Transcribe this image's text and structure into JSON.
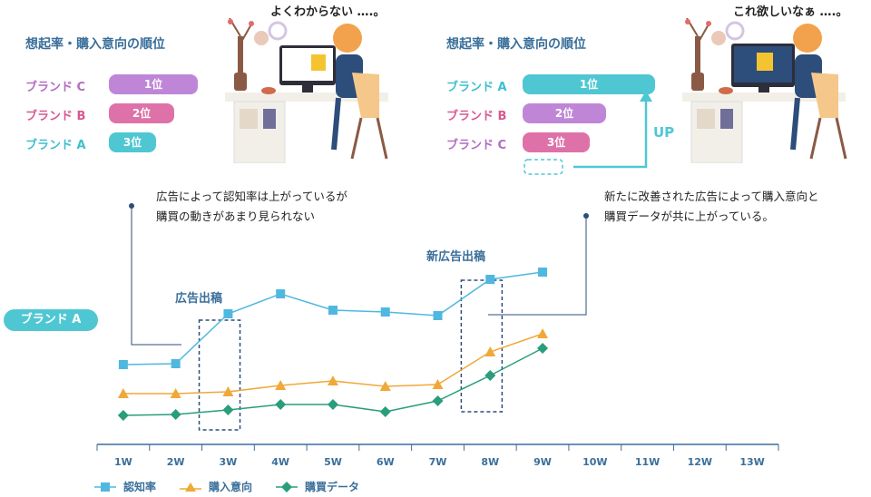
{
  "panel_before": {
    "thought": "よくわからない ….。",
    "ranking_title": "想起率・購入意向の順位",
    "rows": [
      {
        "brand": "ブランド C",
        "rank": "1位",
        "brand_color": "#b46cc4",
        "bar_color": "#bf86d8",
        "value": 1.0
      },
      {
        "brand": "ブランド B",
        "rank": "2位",
        "brand_color": "#d9588f",
        "bar_color": "#de72a8",
        "value": 0.72
      },
      {
        "brand": "ブランド A",
        "rank": "3位",
        "brand_color": "#3fbfcf",
        "bar_color": "#4fc7d2",
        "value": 0.55
      }
    ]
  },
  "panel_after": {
    "thought": "これ欲しいなぁ ….。",
    "ranking_title": "想起率・購入意向の順位",
    "up_label": "UP",
    "rows": [
      {
        "brand": "ブランド A",
        "rank": "1位",
        "brand_color": "#3fbfcf",
        "bar_color": "#4fc7d2",
        "value": 1.0
      },
      {
        "brand": "ブランド B",
        "rank": "2位",
        "brand_color": "#d9588f",
        "bar_color": "#bf86d8",
        "value": 0.63
      },
      {
        "brand": "ブランド C",
        "rank": "3位",
        "brand_color": "#b46cc4",
        "bar_color": "#de72a8",
        "value": 0.51
      }
    ]
  },
  "notes": {
    "left_line1": "広告によって認知率は上がっているが",
    "left_line2": "購買の動きがあまり見られない",
    "right_line1": "新たに改善された広告によって購入意向と",
    "right_line2": "購買データが共に上がっている。"
  },
  "brand_tag": "ブランド A",
  "ad_labels": {
    "first": "広告出稿",
    "second": "新広告出稿"
  },
  "chart_data": {
    "type": "line",
    "x": [
      "1W",
      "2W",
      "3W",
      "4W",
      "5W",
      "6W",
      "7W",
      "8W",
      "9W",
      "10W",
      "11W",
      "12W",
      "13W"
    ],
    "ylim": [
      0,
      10
    ],
    "series": [
      {
        "name": "認知率",
        "color": "#4fb8e0",
        "marker": "square",
        "values": [
          4.3,
          4.35,
          7.1,
          8.2,
          7.3,
          7.2,
          7.0,
          9.0,
          9.4,
          null,
          null,
          null,
          null
        ]
      },
      {
        "name": "購入意向",
        "color": "#f0a838",
        "marker": "triangle",
        "values": [
          2.7,
          2.7,
          2.8,
          3.15,
          3.4,
          3.1,
          3.2,
          5.0,
          6.0,
          null,
          null,
          null,
          null
        ]
      },
      {
        "name": "購買データ",
        "color": "#2a9d7c",
        "marker": "diamond",
        "values": [
          1.5,
          1.55,
          1.8,
          2.1,
          2.1,
          1.7,
          2.3,
          3.7,
          5.2,
          null,
          null,
          null,
          null
        ]
      }
    ],
    "highlights": [
      {
        "label": "広告出稿",
        "from": "2W",
        "to": "3W"
      },
      {
        "label": "新広告出稿",
        "from": "7W",
        "to": "8W"
      }
    ],
    "legend_position": "bottom-left"
  }
}
